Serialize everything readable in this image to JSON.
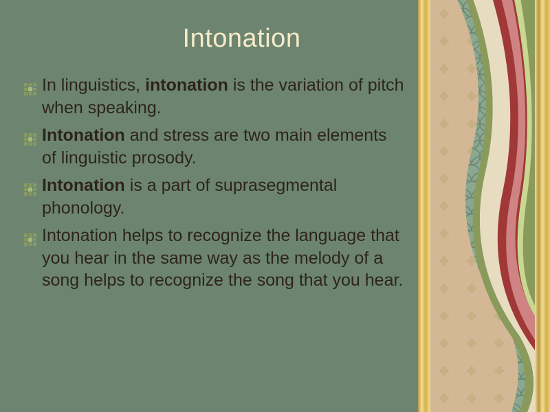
{
  "slide": {
    "title": "Intonation",
    "title_color": "#f5ebc8",
    "title_fontsize": 38,
    "background_color": "#6d8570",
    "text_color": "#2d2518",
    "body_fontsize": 25,
    "bullets": [
      {
        "segments": [
          {
            "text": "In linguistics, ",
            "bold": false
          },
          {
            "text": "intonation",
            "bold": true
          },
          {
            "text": " is the variation of pitch when speaking.",
            "bold": false
          }
        ]
      },
      {
        "segments": [
          {
            "text": "Intonation",
            "bold": true
          },
          {
            "text": " and stress are two main elements of linguistic prosody.",
            "bold": false
          }
        ]
      },
      {
        "segments": [
          {
            "text": "Intonation",
            "bold": true
          },
          {
            "text": " is a part of suprasegmental phonology.",
            "bold": false
          }
        ]
      },
      {
        "segments": [
          {
            "text": "Intonation helps to recognize the language that you hear in the same way as the melody of a song helps to recognize the song that you hear.",
            "bold": false
          }
        ]
      }
    ],
    "bullet_icon_color": "#8a9a5b",
    "decorative": {
      "panel_bg": "#d4b896",
      "gold_colors": [
        "#b89548",
        "#f5e08c",
        "#d4af50"
      ],
      "wave_colors": {
        "red": "#a03838",
        "pink": "#d89090",
        "olive": "#8a9a5b",
        "teal_pattern": "#7a9a8a",
        "cream": "#e8dcc0"
      },
      "flower_color": "#c0a878"
    }
  }
}
